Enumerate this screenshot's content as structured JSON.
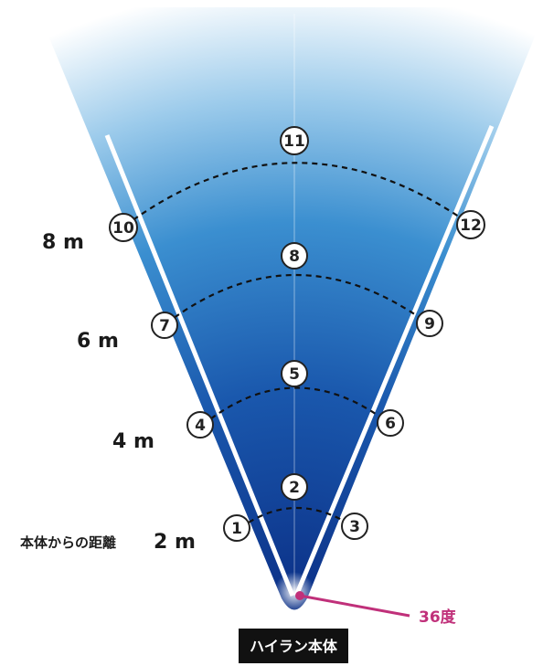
{
  "points": [
    {
      "label": "1"
    },
    {
      "label": "2"
    },
    {
      "label": "3"
    },
    {
      "label": "4"
    },
    {
      "label": "5"
    },
    {
      "label": "6"
    },
    {
      "label": "7"
    },
    {
      "label": "8"
    },
    {
      "label": "9"
    },
    {
      "label": "10"
    },
    {
      "label": "11"
    },
    {
      "label": "12"
    }
  ],
  "distances": {
    "prefix": "本体からの距離",
    "d2": "2 m",
    "d4": "4 m",
    "d6": "6 m",
    "d8": "8 m"
  },
  "angle_label": "36度",
  "device_label": "ハイラン本体",
  "colors": {
    "fan_dark": "#0b2f86",
    "fan_mid": "#1f66b8",
    "fan_light": "#8ec4e8",
    "angle_accent": "#c0307a",
    "device_bg": "#111111"
  }
}
